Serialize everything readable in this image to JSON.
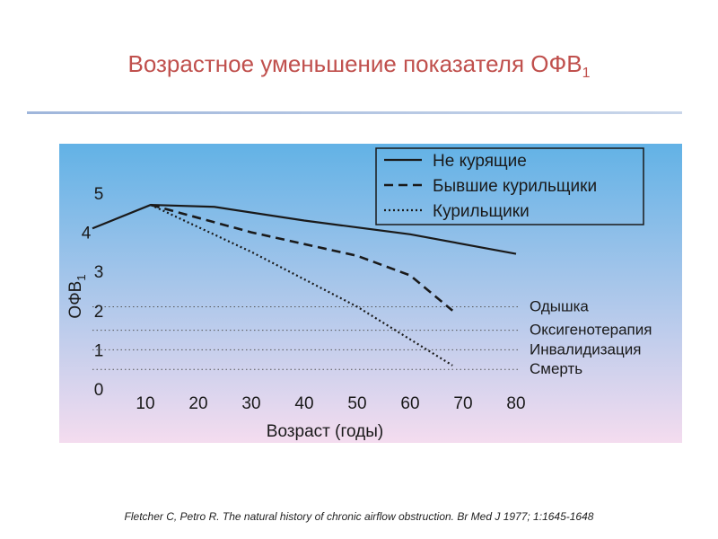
{
  "title": {
    "main": "Возрастное уменьшение показателя ОФВ",
    "subscript": "1"
  },
  "citation": "Fletcher C, Petro R. The natural history of chronic airflow obstruction. Br Med J 1977; 1:1645-1648",
  "colors": {
    "title": "#c0504d",
    "background_top": "#62b2e6",
    "background_bottom": "#f4dcef",
    "line": "#1a1a1a",
    "threshold_dots": "#555555"
  },
  "chart_data": {
    "type": "line",
    "xlabel": "Возраст (годы)",
    "ylabel": "ОФВ",
    "ylabel_subscript": "1",
    "x_ticks": [
      10,
      20,
      30,
      40,
      50,
      60,
      70,
      80
    ],
    "y_ticks": [
      0,
      1,
      2,
      3,
      4,
      5
    ],
    "xlim": [
      0,
      85
    ],
    "ylim": [
      0,
      5.2
    ],
    "legend_position": "top-right",
    "grid": false,
    "series": [
      {
        "name": "Не курящие",
        "style": "solid",
        "points": [
          [
            0,
            4.1
          ],
          [
            11,
            4.7
          ],
          [
            23,
            4.65
          ],
          [
            40,
            4.3
          ],
          [
            60,
            3.95
          ],
          [
            80,
            3.45
          ]
        ]
      },
      {
        "name": "Бывшие курильщики",
        "style": "dashed",
        "points": [
          [
            11,
            4.7
          ],
          [
            30,
            4.0
          ],
          [
            50,
            3.4
          ],
          [
            60,
            2.9
          ],
          [
            68,
            2.0
          ]
        ]
      },
      {
        "name": "Курильщики",
        "style": "dotted",
        "points": [
          [
            11,
            4.7
          ],
          [
            30,
            3.5
          ],
          [
            50,
            2.1
          ],
          [
            68,
            0.6
          ]
        ]
      }
    ],
    "thresholds": [
      {
        "label": "Одышка",
        "y": 2.1
      },
      {
        "label": "Оксигенотерапия",
        "y": 1.5
      },
      {
        "label": "Инвалидизация",
        "y": 1.0
      },
      {
        "label": "Смерть",
        "y": 0.5
      }
    ]
  }
}
